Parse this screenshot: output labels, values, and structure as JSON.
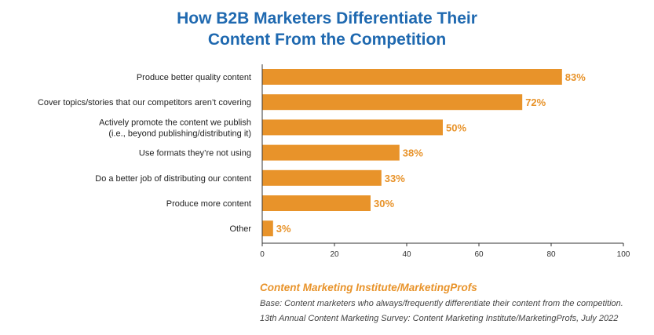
{
  "title_line1": "How B2B Marketers Differentiate Their",
  "title_line2": "Content From the Competition",
  "chart_data": {
    "type": "bar",
    "orientation": "horizontal",
    "categories": [
      [
        "Produce better quality content"
      ],
      [
        "Cover topics/stories that our competitors aren’t covering"
      ],
      [
        "Actively promote the content we publish",
        "(i.e., beyond publishing/distributing it)"
      ],
      [
        "Use formats they’re not using"
      ],
      [
        "Do a better job of distributing our content"
      ],
      [
        "Produce more content"
      ],
      [
        "Other"
      ]
    ],
    "values": [
      83,
      72,
      50,
      38,
      33,
      30,
      3
    ],
    "value_labels": [
      "83%",
      "72%",
      "50%",
      "38%",
      "33%",
      "30%",
      "3%"
    ],
    "xlim": [
      0,
      100
    ],
    "xticks": [
      0,
      20,
      40,
      60,
      80,
      100
    ],
    "grid": false,
    "bar_color": "#e8932a",
    "label_color": "#e8932a"
  },
  "source": "Content Marketing Institute/MarketingProfs",
  "note_line1": "Base: Content marketers who always/frequently differentiate their content from the competition.",
  "note_line2": "13th Annual Content Marketing Survey: Content Marketing Institute/MarketingProfs, July 2022"
}
